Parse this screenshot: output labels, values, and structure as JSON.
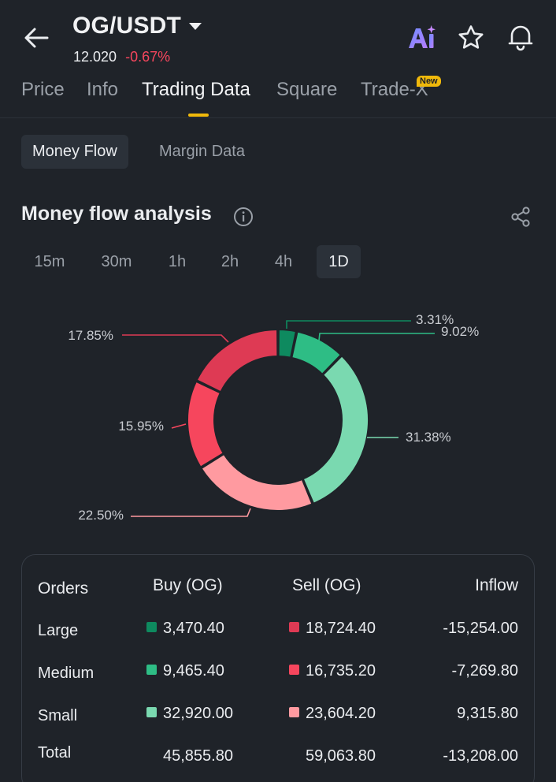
{
  "header": {
    "pair": "OG/USDT",
    "last_price": "12.020",
    "change": "-0.67%",
    "icons": [
      "back-arrow-icon",
      "ai-icon",
      "star-icon",
      "bell-icon"
    ]
  },
  "tabs": [
    {
      "label": "Price"
    },
    {
      "label": "Info"
    },
    {
      "label": "Trading Data"
    },
    {
      "label": "Square"
    },
    {
      "label": "Trade-X"
    }
  ],
  "new_badge": "New",
  "subtabs": [
    {
      "label": "Money Flow"
    },
    {
      "label": "Margin Data"
    }
  ],
  "section": {
    "title": "Money flow analysis"
  },
  "periods": [
    "15m",
    "30m",
    "1h",
    "2h",
    "4h",
    "1D"
  ],
  "active_period": "1D",
  "colors": {
    "accent": "#f0b90b",
    "buy_large": "#0e8a5f",
    "buy_medium": "#2ebd85",
    "buy_small": "#7ad9b0",
    "sell_large": "#de3a54",
    "sell_medium": "#f6465d",
    "sell_small": "#ff9aa0"
  },
  "chart_data": {
    "type": "pie",
    "categories": [
      "Large Buy",
      "Medium Buy",
      "Small Buy",
      "Small Sell",
      "Medium Sell",
      "Large Sell"
    ],
    "values": [
      3.31,
      9.02,
      31.38,
      22.5,
      15.95,
      17.85
    ],
    "labels": [
      "3.31%",
      "9.02%",
      "31.38%",
      "22.50%",
      "15.95%",
      "17.85%"
    ]
  },
  "table": {
    "headers": [
      "Orders",
      "Buy (OG)",
      "Sell (OG)",
      "Inflow"
    ],
    "rows": [
      {
        "label": "Large",
        "buy": "3,470.40",
        "sell": "18,724.40",
        "inflow": "-15,254.00"
      },
      {
        "label": "Medium",
        "buy": "9,465.40",
        "sell": "16,735.20",
        "inflow": "-7,269.80"
      },
      {
        "label": "Small",
        "buy": "32,920.00",
        "sell": "23,604.20",
        "inflow": "9,315.80"
      }
    ],
    "total": {
      "label": "Total",
      "buy": "45,855.80",
      "sell": "59,063.80",
      "inflow": "-13,208.00"
    }
  }
}
